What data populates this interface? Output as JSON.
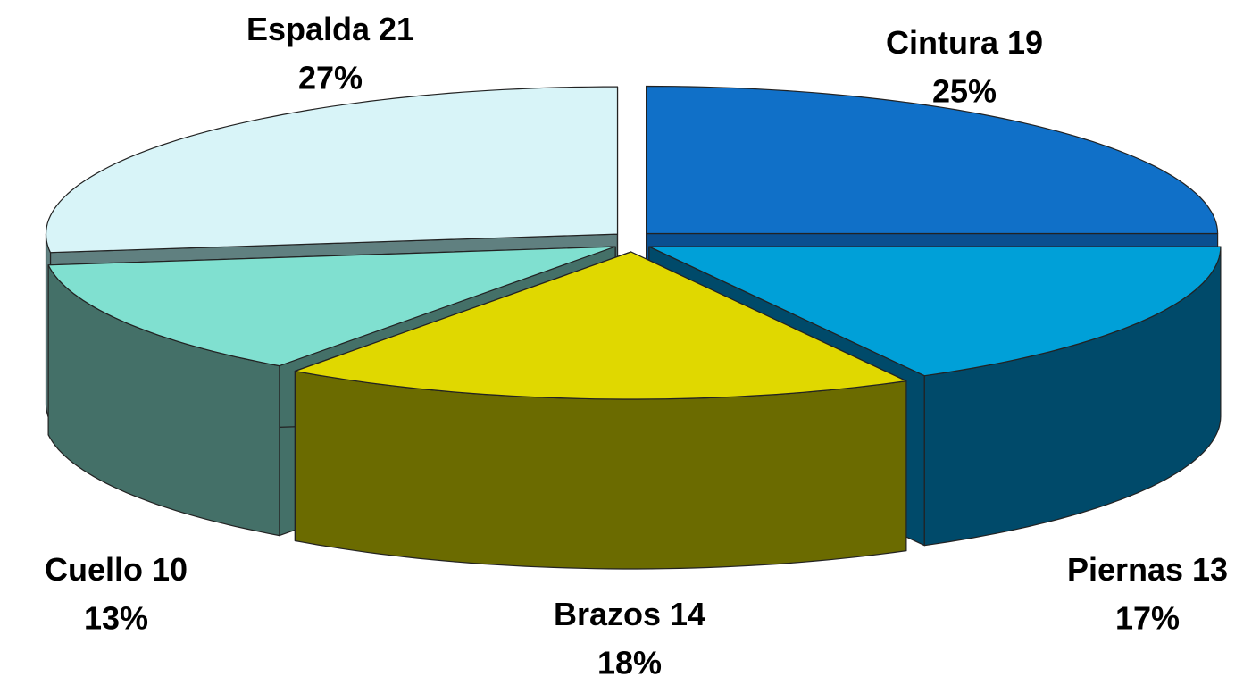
{
  "chart_data": {
    "type": "pie3d",
    "categories": [
      "Cintura",
      "Piernas",
      "Brazos",
      "Cuello",
      "Espalda"
    ],
    "counts": [
      19,
      13,
      14,
      10,
      21
    ],
    "values": [
      25,
      17,
      18,
      13,
      27
    ],
    "value_labels": [
      "25%",
      "17%",
      "18%",
      "13%",
      "27%"
    ],
    "colors": [
      "#1070c8",
      "#00a0d8",
      "#e0d800",
      "#80e0d0",
      "#d8f4f8"
    ],
    "side_colors": [
      "#0a4f90",
      "#004a6a",
      "#6b6b00",
      "#447068",
      "#608080"
    ]
  }
}
